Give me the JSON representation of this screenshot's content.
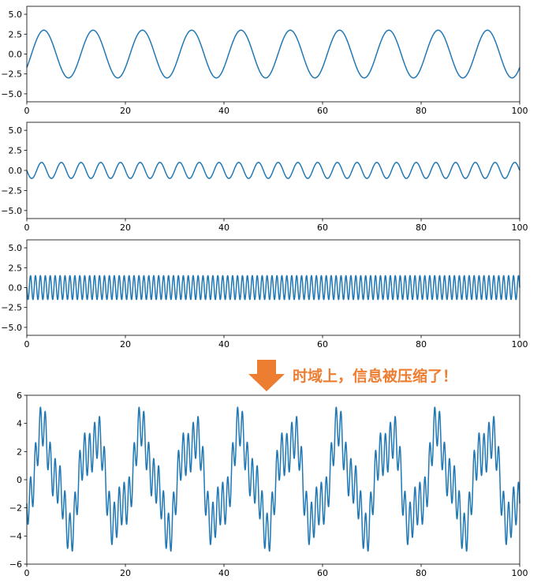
{
  "annotation": {
    "text": "时域上，信息被压缩了！",
    "color": "#ed7d31"
  },
  "line_color": "#1f77b4",
  "chart_data": [
    {
      "type": "line",
      "title": "",
      "xlabel": "",
      "ylabel": "",
      "xlim": [
        0,
        100
      ],
      "ylim": [
        -6,
        6
      ],
      "xticks": [
        0,
        20,
        40,
        60,
        80,
        100
      ],
      "xtick_labels": [
        "0",
        "20",
        "40",
        "60",
        "80",
        "100"
      ],
      "yticks": [
        -5,
        -2.5,
        0,
        2.5,
        5
      ],
      "ytick_labels": [
        "−5.0",
        "−2.5",
        "0.0",
        "2.5",
        "5.0"
      ],
      "grid": false,
      "series": [
        {
          "formula": "y = 3·sin(2πx/10 − 0.6)",
          "amplitude": 3,
          "period": 10,
          "phase": -0.6
        }
      ]
    },
    {
      "type": "line",
      "title": "",
      "xlabel": "",
      "ylabel": "",
      "xlim": [
        0,
        100
      ],
      "ylim": [
        -6,
        6
      ],
      "xticks": [
        0,
        20,
        40,
        60,
        80,
        100
      ],
      "xtick_labels": [
        "0",
        "20",
        "40",
        "60",
        "80",
        "100"
      ],
      "yticks": [
        -5,
        -2.5,
        0,
        2.5,
        5
      ],
      "ytick_labels": [
        "−5.0",
        "−2.5",
        "0.0",
        "2.5",
        "5.0"
      ],
      "grid": false,
      "series": [
        {
          "formula": "y = −sin(2πx/4)",
          "amplitude": -1,
          "period": 4,
          "phase": 0
        }
      ]
    },
    {
      "type": "line",
      "title": "",
      "xlabel": "",
      "ylabel": "",
      "xlim": [
        0,
        100
      ],
      "ylim": [
        -6,
        6
      ],
      "xticks": [
        0,
        20,
        40,
        60,
        80,
        100
      ],
      "xtick_labels": [
        "0",
        "20",
        "40",
        "60",
        "80",
        "100"
      ],
      "yticks": [
        -5,
        -2.5,
        0,
        2.5,
        5
      ],
      "ytick_labels": [
        "−5.0",
        "−2.5",
        "0.0",
        "2.5",
        "5.0"
      ],
      "grid": false,
      "series": [
        {
          "formula": "y = −1.5·sin(2πx)",
          "amplitude": -1.5,
          "period": 1,
          "phase": 0
        }
      ]
    },
    {
      "type": "line",
      "title": "",
      "xlabel": "",
      "ylabel": "",
      "xlim": [
        0,
        100
      ],
      "ylim": [
        -6,
        6
      ],
      "xticks": [
        0,
        20,
        40,
        60,
        80,
        100
      ],
      "xtick_labels": [
        "0",
        "20",
        "40",
        "60",
        "80",
        "100"
      ],
      "yticks": [
        -6,
        -4,
        -2,
        0,
        2,
        4,
        6
      ],
      "ytick_labels": [
        "−6",
        "−4",
        "−2",
        "0",
        "2",
        "4",
        "6"
      ],
      "grid": false,
      "series": [
        {
          "formula": "y = sum of the three signals above",
          "sum_of": [
            0,
            1,
            2
          ]
        }
      ]
    }
  ]
}
